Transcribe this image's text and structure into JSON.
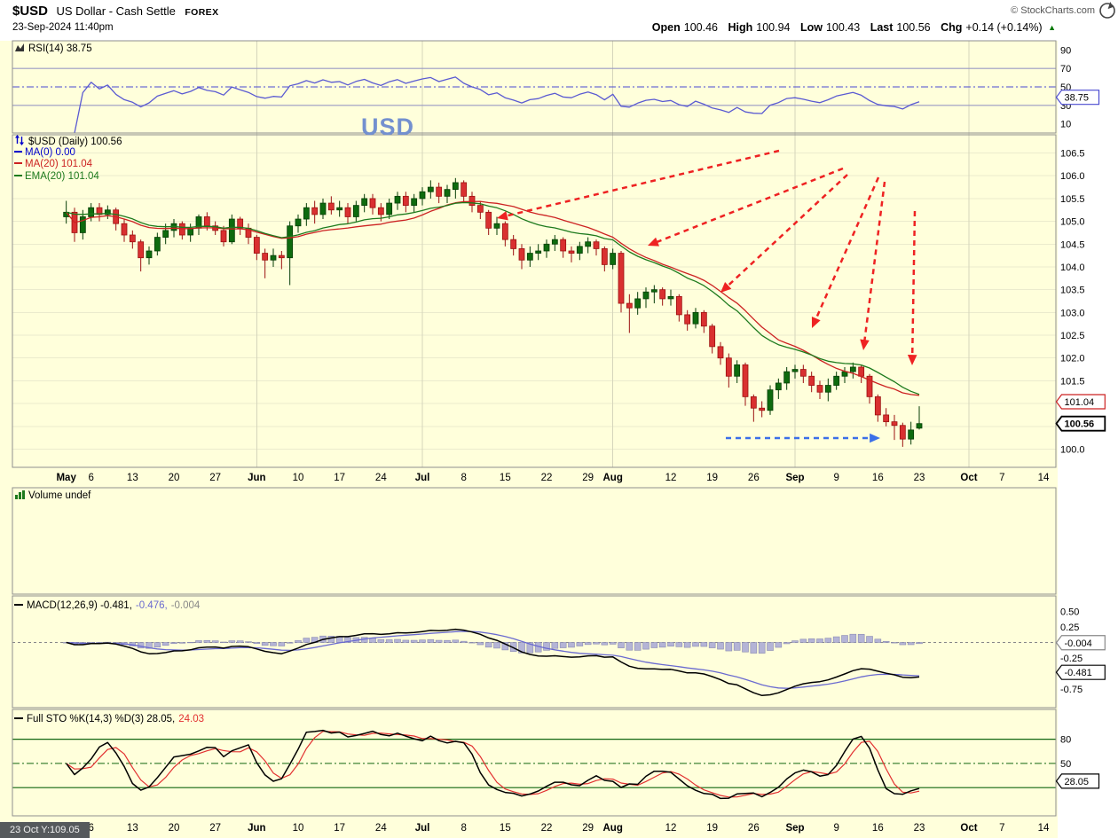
{
  "header": {
    "symbol": "$USD",
    "name": "US Dollar - Cash Settle",
    "exchange": "FOREX",
    "date": "23-Sep-2024 11:40pm",
    "credit": "© StockCharts.com",
    "quote": {
      "open_label": "Open",
      "open": "100.46",
      "high_label": "High",
      "high": "100.94",
      "low_label": "Low",
      "low": "100.43",
      "last_label": "Last",
      "last": "100.56",
      "chg_label": "Chg",
      "chg": "+0.14 (+0.14%)",
      "chg_dir": "▲"
    }
  },
  "legends": {
    "rsi": "RSI(14) 38.75",
    "price_title": "$USD (Daily) 100.56",
    "ma0": "MA(0) 0.00",
    "ma20": "MA(20) 101.04",
    "ema20": "EMA(20) 101.04",
    "volume": "Volume undef",
    "macd_main": "MACD(12,26,9) -0.481,",
    "macd_signal": "-0.476,",
    "macd_hist": "-0.004",
    "sto_main": "Full STO %K(14,3) %D(3) 28.05,",
    "sto_d": "24.03"
  },
  "annotations": {
    "usd_label": "USD",
    "cursor_readout": "23 Oct Y:109.05"
  },
  "colors": {
    "background": "#ffffdb",
    "up": "#0e6b0e",
    "up_stroke": "#063e06",
    "down": "#d93030",
    "down_stroke": "#9c1111",
    "ma0": "#0000cc",
    "ma20": "#cc2222",
    "ema20": "#1d7a1d",
    "rsi_line": "#5a5ad2",
    "guide_gray": "#9a9ac4",
    "guide_blue": "#4a4ad0",
    "macd_line": "#000000",
    "macd_signal": "#6a6ad0",
    "macd_hist_fill": "#b4b4d6",
    "macd_hist_stroke": "#8a8ab2",
    "sto_k": "#000000",
    "sto_d": "#e23030",
    "sto_guide": "#116611",
    "arrow_red": "#ee2222",
    "arrow_blue": "#3b6fe8",
    "grid_h": "#ebebcd",
    "grid_v": "#d5d5bb",
    "frame": "#8f8f8f"
  },
  "chart_data": {
    "type": "candlestick-multi-panel",
    "slots_total": 126,
    "candle_start_slot": 6,
    "month_grid_slots": [
      29,
      49,
      72,
      94,
      115
    ],
    "x_ticks": [
      {
        "label": "May",
        "slot": 6,
        "bold": true
      },
      {
        "label": "6",
        "slot": 9
      },
      {
        "label": "13",
        "slot": 14
      },
      {
        "label": "20",
        "slot": 19
      },
      {
        "label": "27",
        "slot": 24
      },
      {
        "label": "Jun",
        "slot": 29,
        "bold": true
      },
      {
        "label": "10",
        "slot": 34
      },
      {
        "label": "17",
        "slot": 39
      },
      {
        "label": "24",
        "slot": 44
      },
      {
        "label": "Jul",
        "slot": 49,
        "bold": true
      },
      {
        "label": "8",
        "slot": 54
      },
      {
        "label": "15",
        "slot": 59
      },
      {
        "label": "22",
        "slot": 64
      },
      {
        "label": "29",
        "slot": 69
      },
      {
        "label": "Aug",
        "slot": 72,
        "bold": true
      },
      {
        "label": "12",
        "slot": 79
      },
      {
        "label": "19",
        "slot": 84
      },
      {
        "label": "26",
        "slot": 89
      },
      {
        "label": "Sep",
        "slot": 94,
        "bold": true
      },
      {
        "label": "9",
        "slot": 99
      },
      {
        "label": "16",
        "slot": 104
      },
      {
        "label": "23",
        "slot": 109
      },
      {
        "label": "Oct",
        "slot": 115,
        "bold": true
      },
      {
        "label": "7",
        "slot": 119
      },
      {
        "label": "14",
        "slot": 124
      }
    ],
    "panels": {
      "rsi": {
        "type": "line",
        "indicator": "RSI(14)",
        "last": 38.75,
        "ylim": [
          0,
          100
        ],
        "guides": {
          "overbought": 70,
          "mid": 50,
          "oversold": 30
        },
        "axis_labels": [
          90,
          70,
          50,
          30,
          10
        ],
        "badges": [
          {
            "text": "38.75",
            "value": 38.75,
            "color": "#4a4ad0",
            "bold": false
          }
        ]
      },
      "price": {
        "type": "candlestick",
        "last": 100.56,
        "ma20_last": 101.04,
        "ema20_last": 101.04,
        "ylim": [
          99.6,
          106.9
        ],
        "axis_labels": [
          106.5,
          106.0,
          105.5,
          105.0,
          104.5,
          104.0,
          103.5,
          103.0,
          102.5,
          102.0,
          101.5,
          100.0
        ],
        "badges": [
          {
            "text": "101.04",
            "value": 101.04,
            "color": "#cc2222",
            "bold": false
          },
          {
            "text": "100.56",
            "value": 100.56,
            "color": "#000000",
            "bold": true
          }
        ],
        "candles": [
          [
            105.1,
            105.45,
            104.95,
            105.2
          ],
          [
            105.2,
            105.3,
            104.55,
            104.75
          ],
          [
            104.75,
            105.25,
            104.6,
            105.1
          ],
          [
            105.1,
            105.4,
            105.0,
            105.3
          ],
          [
            105.3,
            105.4,
            105.0,
            105.15
          ],
          [
            105.15,
            105.35,
            105.05,
            105.25
          ],
          [
            105.25,
            105.3,
            104.8,
            104.95
          ],
          [
            104.95,
            105.05,
            104.55,
            104.7
          ],
          [
            104.7,
            104.8,
            104.4,
            104.55
          ],
          [
            104.55,
            104.6,
            103.9,
            104.2
          ],
          [
            104.2,
            104.45,
            104.05,
            104.35
          ],
          [
            104.35,
            104.75,
            104.25,
            104.65
          ],
          [
            104.65,
            104.95,
            104.5,
            104.8
          ],
          [
            104.8,
            105.05,
            104.65,
            104.95
          ],
          [
            104.95,
            105.0,
            104.6,
            104.7
          ],
          [
            104.7,
            104.95,
            104.55,
            104.85
          ],
          [
            104.85,
            105.15,
            104.7,
            105.1
          ],
          [
            105.1,
            105.2,
            104.8,
            104.9
          ],
          [
            104.9,
            105.0,
            104.7,
            104.8
          ],
          [
            104.8,
            104.9,
            104.45,
            104.55
          ],
          [
            104.55,
            105.15,
            104.5,
            105.05
          ],
          [
            105.05,
            105.1,
            104.7,
            104.85
          ],
          [
            104.85,
            104.95,
            104.5,
            104.65
          ],
          [
            104.65,
            104.7,
            104.15,
            104.3
          ],
          [
            104.3,
            104.4,
            103.75,
            104.15
          ],
          [
            104.15,
            104.4,
            104.0,
            104.25
          ],
          [
            104.25,
            104.35,
            103.95,
            104.2
          ],
          [
            104.2,
            105.0,
            103.6,
            104.9
          ],
          [
            104.9,
            105.15,
            104.75,
            105.05
          ],
          [
            105.05,
            105.4,
            104.9,
            105.3
          ],
          [
            105.3,
            105.45,
            104.95,
            105.15
          ],
          [
            105.15,
            105.5,
            105.05,
            105.4
          ],
          [
            105.4,
            105.55,
            105.15,
            105.25
          ],
          [
            105.25,
            105.45,
            105.1,
            105.3
          ],
          [
            105.3,
            105.4,
            104.95,
            105.1
          ],
          [
            105.1,
            105.45,
            105.0,
            105.35
          ],
          [
            105.35,
            105.6,
            105.2,
            105.5
          ],
          [
            105.5,
            105.6,
            105.15,
            105.3
          ],
          [
            105.3,
            105.4,
            105.0,
            105.15
          ],
          [
            105.15,
            105.5,
            105.05,
            105.4
          ],
          [
            105.4,
            105.65,
            105.25,
            105.55
          ],
          [
            105.55,
            105.65,
            105.2,
            105.35
          ],
          [
            105.35,
            105.6,
            105.2,
            105.5
          ],
          [
            105.5,
            105.75,
            105.35,
            105.65
          ],
          [
            105.65,
            105.9,
            105.5,
            105.75
          ],
          [
            105.75,
            105.85,
            105.4,
            105.55
          ],
          [
            105.55,
            105.8,
            105.4,
            105.7
          ],
          [
            105.7,
            105.95,
            105.5,
            105.85
          ],
          [
            105.85,
            105.9,
            105.4,
            105.55
          ],
          [
            105.55,
            105.65,
            105.2,
            105.35
          ],
          [
            105.35,
            105.45,
            105.05,
            105.2
          ],
          [
            105.2,
            105.25,
            104.7,
            104.85
          ],
          [
            104.85,
            105.1,
            104.7,
            104.95
          ],
          [
            104.95,
            105.0,
            104.45,
            104.6
          ],
          [
            104.6,
            104.7,
            104.25,
            104.4
          ],
          [
            104.4,
            104.5,
            103.95,
            104.15
          ],
          [
            104.15,
            104.45,
            104.0,
            104.3
          ],
          [
            104.3,
            104.5,
            104.15,
            104.35
          ],
          [
            104.35,
            104.6,
            104.2,
            104.5
          ],
          [
            104.5,
            104.7,
            104.35,
            104.6
          ],
          [
            104.6,
            104.65,
            104.2,
            104.35
          ],
          [
            104.35,
            104.45,
            104.1,
            104.3
          ],
          [
            104.3,
            104.55,
            104.15,
            104.45
          ],
          [
            104.45,
            104.65,
            104.3,
            104.55
          ],
          [
            104.55,
            104.6,
            104.25,
            104.4
          ],
          [
            104.4,
            104.45,
            103.9,
            104.05
          ],
          [
            104.05,
            104.4,
            103.95,
            104.3
          ],
          [
            104.3,
            104.35,
            103.0,
            103.2
          ],
          [
            103.2,
            103.4,
            102.55,
            103.1
          ],
          [
            103.1,
            103.45,
            102.95,
            103.3
          ],
          [
            103.3,
            103.55,
            103.1,
            103.45
          ],
          [
            103.45,
            103.6,
            103.2,
            103.5
          ],
          [
            103.5,
            103.55,
            103.15,
            103.3
          ],
          [
            103.3,
            103.5,
            103.15,
            103.35
          ],
          [
            103.35,
            103.4,
            102.8,
            102.95
          ],
          [
            102.95,
            103.05,
            102.6,
            102.75
          ],
          [
            102.75,
            103.1,
            102.65,
            103.0
          ],
          [
            103.0,
            103.05,
            102.55,
            102.7
          ],
          [
            102.7,
            102.75,
            102.1,
            102.25
          ],
          [
            102.25,
            102.35,
            101.85,
            102.0
          ],
          [
            102.0,
            102.1,
            101.35,
            101.6
          ],
          [
            101.6,
            101.95,
            101.45,
            101.85
          ],
          [
            101.85,
            101.9,
            100.95,
            101.15
          ],
          [
            101.15,
            101.2,
            100.6,
            100.9
          ],
          [
            100.9,
            101.05,
            100.7,
            100.85
          ],
          [
            100.85,
            101.4,
            100.75,
            101.3
          ],
          [
            101.3,
            101.55,
            101.1,
            101.45
          ],
          [
            101.45,
            101.8,
            101.3,
            101.7
          ],
          [
            101.7,
            101.85,
            101.55,
            101.75
          ],
          [
            101.75,
            101.85,
            101.45,
            101.6
          ],
          [
            101.6,
            101.7,
            101.25,
            101.4
          ],
          [
            101.4,
            101.5,
            101.1,
            101.25
          ],
          [
            101.25,
            101.55,
            101.05,
            101.4
          ],
          [
            101.4,
            101.7,
            101.3,
            101.6
          ],
          [
            101.6,
            101.8,
            101.45,
            101.7
          ],
          [
            101.7,
            101.9,
            101.55,
            101.8
          ],
          [
            101.8,
            101.85,
            101.45,
            101.6
          ],
          [
            101.6,
            101.65,
            101.0,
            101.15
          ],
          [
            101.15,
            101.2,
            100.6,
            100.75
          ],
          [
            100.75,
            100.9,
            100.5,
            100.6
          ],
          [
            100.6,
            100.75,
            100.2,
            100.52
          ],
          [
            100.52,
            100.58,
            100.05,
            100.22
          ],
          [
            100.22,
            100.6,
            100.1,
            100.42
          ],
          [
            100.46,
            100.94,
            100.43,
            100.56
          ]
        ]
      },
      "volume": {
        "type": "empty",
        "label": "Volume undef"
      },
      "macd": {
        "type": "macd",
        "params": [
          12,
          26,
          9
        ],
        "last": {
          "macd": -0.481,
          "signal": -0.476,
          "hist": -0.004
        },
        "ylim": [
          -1.05,
          0.75
        ],
        "axis_labels": [
          0.5,
          0.25,
          -0.25,
          -0.75
        ],
        "badges": [
          {
            "text": "-0.004",
            "value": -0.004,
            "color": "#888888",
            "bold": false
          },
          {
            "text": "-0.481",
            "value": -0.481,
            "color": "#000000",
            "bold": false
          }
        ]
      },
      "sto": {
        "type": "stochastic",
        "params": "%K(14,3) %D(3)",
        "last": {
          "k": 28.05,
          "d": 24.03
        },
        "ylim": [
          -15,
          117
        ],
        "guides": {
          "overbought": 80,
          "mid": 50,
          "oversold": 20
        },
        "axis_labels": [
          80,
          50
        ],
        "badges": [
          {
            "text": "28.05",
            "value": 28.05,
            "color": "#000000",
            "bold": false
          }
        ]
      }
    },
    "annotations": {
      "red_arrows": [
        [
          878,
          170,
          560,
          246
        ],
        [
          950,
          190,
          730,
          277
        ],
        [
          955,
          197,
          812,
          330
        ],
        [
          990,
          200,
          915,
          370
        ],
        [
          997,
          205,
          973,
          395
        ],
        [
          1031,
          238,
          1028,
          412
        ]
      ],
      "blue_arrow": [
        818,
        494,
        992,
        494
      ]
    }
  }
}
